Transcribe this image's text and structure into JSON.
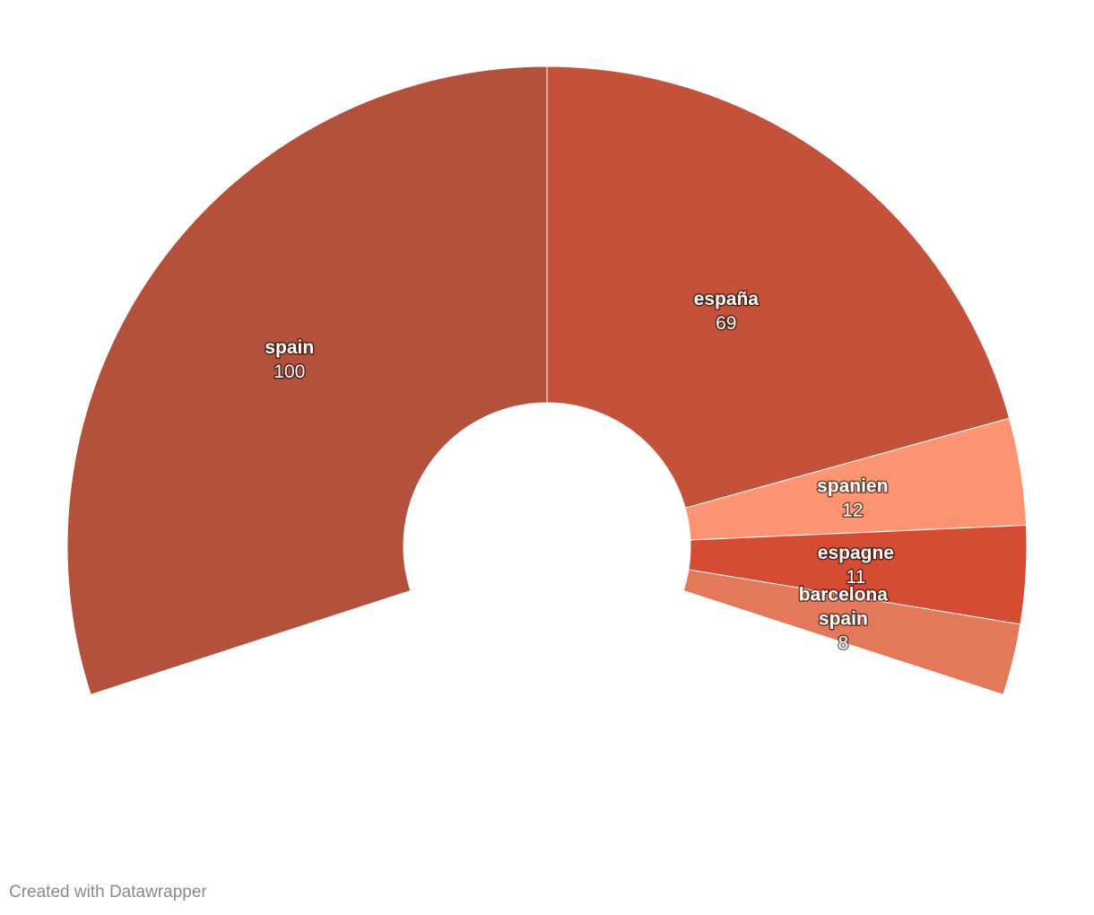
{
  "chart_data": {
    "type": "pie",
    "variant": "semi-donut",
    "slices": [
      {
        "label": "spain",
        "value": 100,
        "color": "#b3513d"
      },
      {
        "label": "españa",
        "value": 69,
        "color": "#c4513a"
      },
      {
        "label": "spanien",
        "value": 12,
        "color": "#fe9472"
      },
      {
        "label": "espagne",
        "value": 11,
        "color": "#d64c32"
      },
      {
        "label": "barcelona spain",
        "label_lines": [
          "barcelona",
          "spain"
        ],
        "value": 8,
        "color": "#e4785a"
      }
    ]
  },
  "footer": {
    "credit": "Created with Datawrapper"
  }
}
